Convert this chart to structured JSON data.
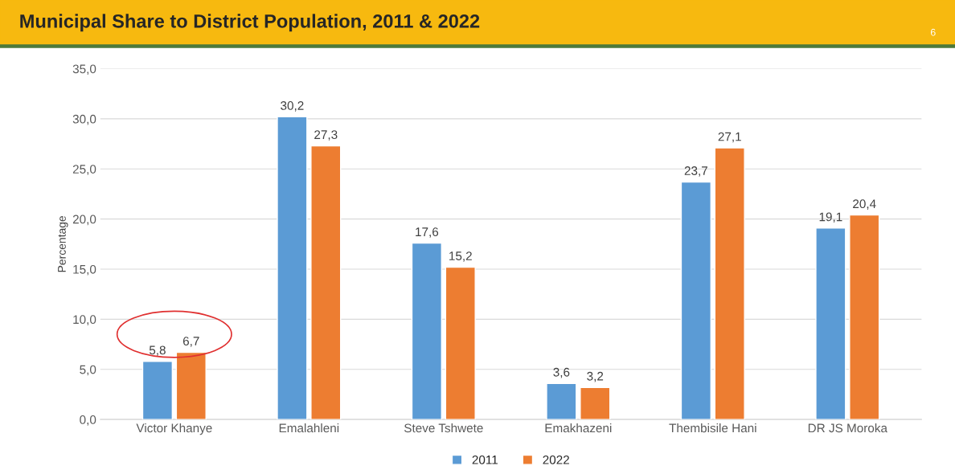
{
  "chart_data": {
    "type": "bar",
    "title": "Municipal Share to District Population, 2011 & 2022",
    "annotations": [
      "6"
    ],
    "ylabel": "Percentage",
    "categories": [
      "Victor Khanye",
      "Emalahleni",
      "Steve Tshwete",
      "Emakhazeni",
      "Thembisile Hani",
      "DR JS Moroka"
    ],
    "series": [
      {
        "name": "2011",
        "color": "#5b9bd5",
        "values": [
          5.8,
          30.2,
          17.6,
          3.6,
          23.7,
          19.1
        ],
        "value_labels": [
          "5,8",
          "30,2",
          "17,6",
          "3,6",
          "23,7",
          "19,1"
        ]
      },
      {
        "name": "2022",
        "color": "#ed7d31",
        "values": [
          6.7,
          27.3,
          15.2,
          3.2,
          27.1,
          20.4
        ],
        "value_labels": [
          "6,7",
          "27,3",
          "15,2",
          "3,2",
          "27,1",
          "20,4"
        ]
      }
    ],
    "ylim": [
      0,
      35
    ],
    "yticks": [
      {
        "value": 0,
        "label": "0,0"
      },
      {
        "value": 5,
        "label": "5,0"
      },
      {
        "value": 10,
        "label": "10,0"
      },
      {
        "value": 15,
        "label": "15,0"
      },
      {
        "value": 20,
        "label": "20,0"
      },
      {
        "value": 25,
        "label": "25,0"
      },
      {
        "value": 30,
        "label": "30,0"
      },
      {
        "value": 35,
        "label": "35,0"
      }
    ],
    "grid": "y",
    "legend": "bottom"
  }
}
